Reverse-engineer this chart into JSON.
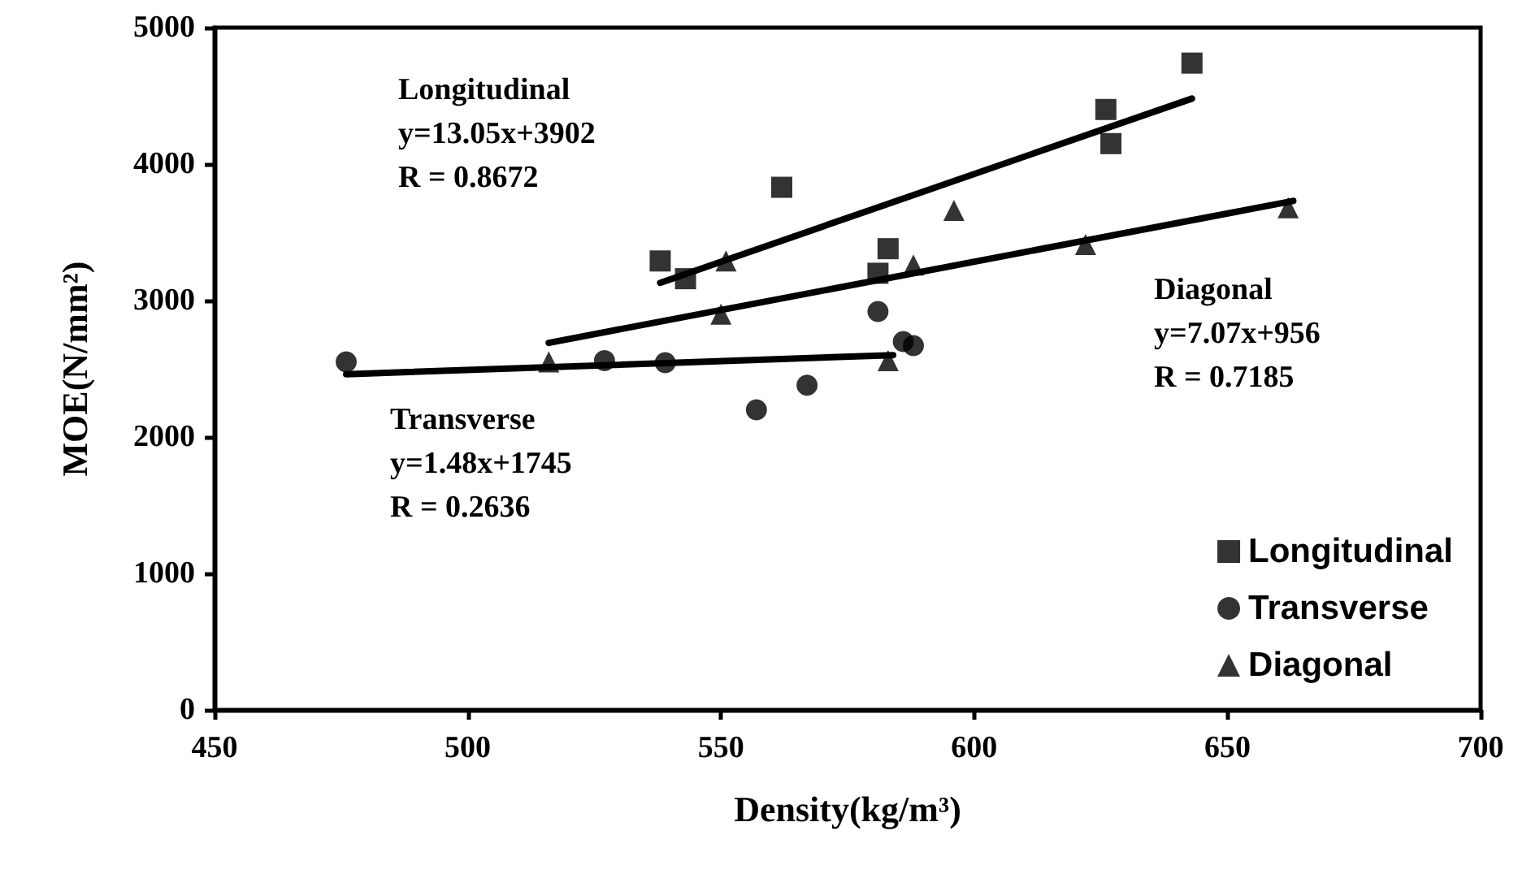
{
  "chart_data": {
    "type": "scatter",
    "xlabel": "Density(kg/m³)",
    "ylabel": "MOE(N/mm²)",
    "xlim": [
      450,
      700
    ],
    "xticks": [
      450,
      500,
      550,
      600,
      650,
      700
    ],
    "ylim": [
      0,
      5000
    ],
    "yticks": [
      0,
      1000,
      2000,
      3000,
      4000,
      5000
    ],
    "grid": false,
    "legend": "bottom right",
    "series": [
      {
        "name": "Longitudinal",
        "color": "#000000",
        "marker": "square",
        "x": [
          538,
          543,
          562,
          581,
          583,
          626,
          627,
          643
        ],
        "values": [
          3290,
          3160,
          3830,
          3200,
          3380,
          4400,
          4150,
          4740
        ]
      },
      {
        "name": "Transverse",
        "color": "#000000",
        "marker": "circle",
        "x": [
          476,
          527,
          539,
          557,
          567,
          581,
          586,
          588
        ],
        "values": [
          2550,
          2560,
          2545,
          2200,
          2380,
          2920,
          2700,
          2670
        ]
      },
      {
        "name": "Diagonal",
        "color": "#000000",
        "marker": "triangle",
        "x": [
          516,
          550,
          551,
          583,
          588,
          596,
          622,
          662
        ],
        "values": [
          2550,
          2900,
          3290,
          2560,
          3260,
          3660,
          3410,
          3680
        ]
      },
      {
        "type": "line",
        "color": "#000000",
        "marker": "none",
        "line_style": "solid",
        "x": [
          538,
          643
        ],
        "values": [
          3130,
          4480
        ]
      },
      {
        "type": "line",
        "color": "#000000",
        "marker": "none",
        "line_style": "solid",
        "x": [
          476,
          584
        ],
        "values": [
          2460,
          2600
        ]
      },
      {
        "type": "line",
        "color": "#000000",
        "marker": "none",
        "line_style": "solid",
        "x": [
          516,
          663
        ],
        "values": [
          2690,
          3730
        ]
      }
    ],
    "annotations": [
      "Longitudinal\ny=13.05x+3902\nR = 0.8672",
      "Transverse\ny=1.48x+1745\nR = 0.2636",
      "Diagonal\ny=7.07x+956\nR = 0.7185"
    ]
  }
}
